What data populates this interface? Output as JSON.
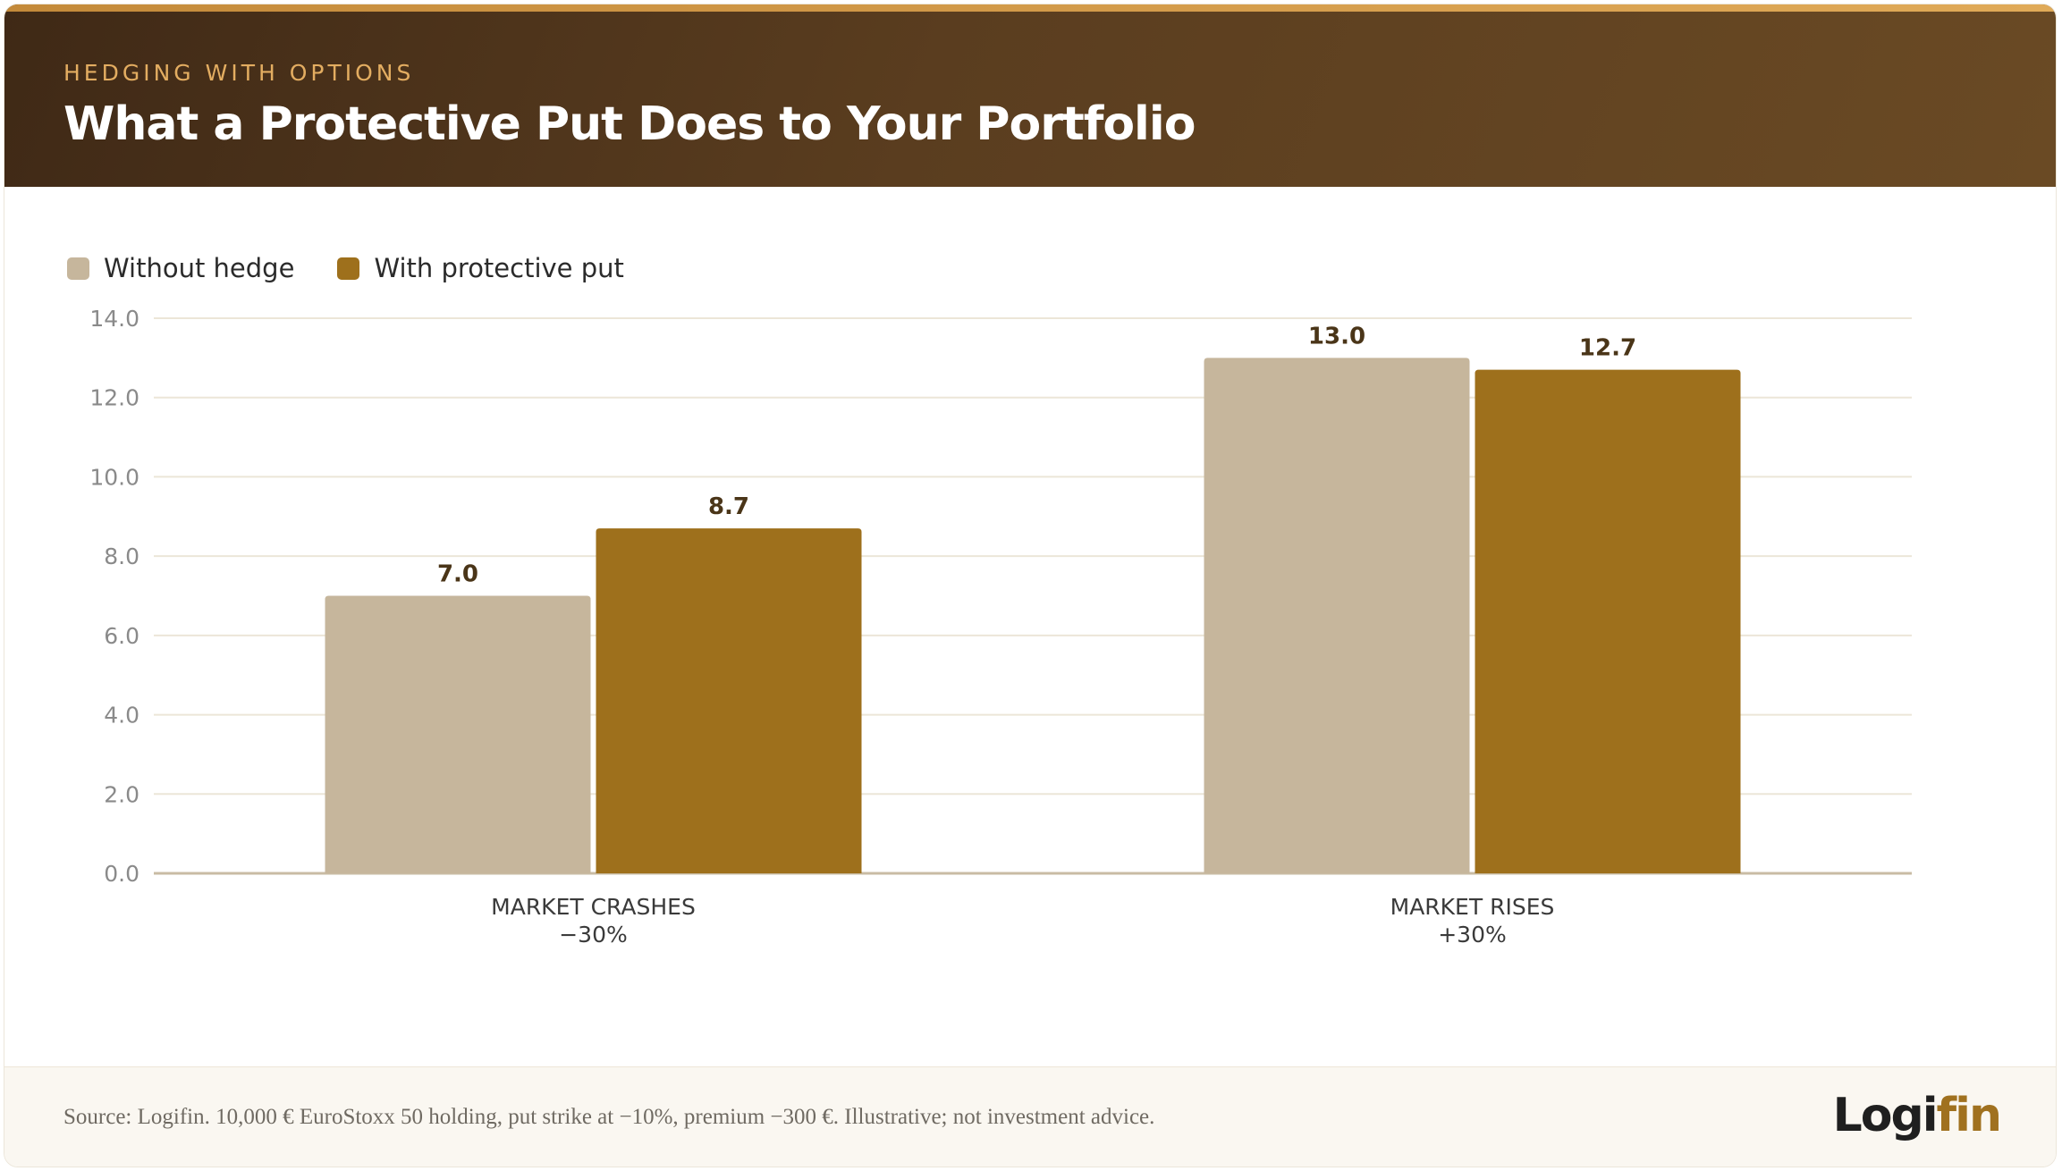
{
  "header": {
    "kicker": "HEDGING WITH OPTIONS",
    "title": "What a Protective Put Does to Your Portfolio"
  },
  "footer": {
    "source": "Source: Logifin. 10,000 € EuroStoxx 50 holding, put strike at −10%, premium −300 €. Illustrative; not investment advice.",
    "logo_part1": "Logi",
    "logo_part2": "fin"
  },
  "colors": {
    "without_hedge": "#c6b69c",
    "with_put": "#9e701c",
    "value_label": "#4a3518",
    "grid": "#ece6d8",
    "axis": "#c9bca4"
  },
  "chart_data": {
    "type": "bar",
    "categories": [
      [
        "MARKET CRASHES",
        "−30%"
      ],
      [
        "MARKET RISES",
        "+30%"
      ]
    ],
    "series": [
      {
        "name": "Without hedge",
        "values": [
          7.0,
          13.0
        ],
        "color": "#c6b69c"
      },
      {
        "name": "With protective put",
        "values": [
          8.7,
          12.7
        ],
        "color": "#9e701c"
      }
    ],
    "value_labels": [
      [
        "7.0",
        "13.0"
      ],
      [
        "8.7",
        "12.7"
      ]
    ],
    "ylim": [
      0,
      14
    ],
    "yticks": [
      "0.0",
      "2.0",
      "4.0",
      "6.0",
      "8.0",
      "10.0",
      "12.0",
      "14.0"
    ],
    "grid": true,
    "legend_position": "top-left"
  }
}
